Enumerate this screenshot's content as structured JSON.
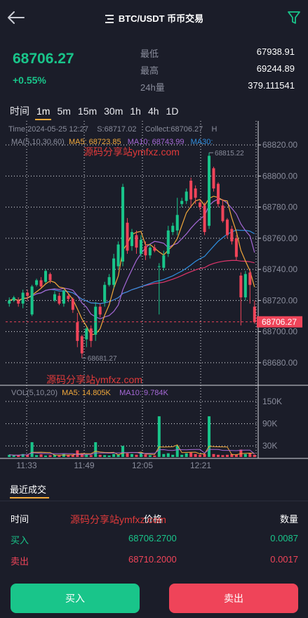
{
  "header": {
    "title": "BTC/USDT 币币交易",
    "back_icon": "arrow-left-icon",
    "filter_icon": "filter-icon",
    "menu_icon": "menu-icon"
  },
  "ticker": {
    "last_price": "68706.27",
    "change_pct": "+0.55%",
    "low_label": "最低",
    "low_value": "67938.91",
    "high_label": "最高",
    "high_value": "69244.89",
    "volume_label": "24h量",
    "volume_value": "379.111541"
  },
  "intervals": {
    "time_label": "时间",
    "items": [
      "1m",
      "5m",
      "15m",
      "30m",
      "1h",
      "4h",
      "1D"
    ],
    "active": "1m"
  },
  "chart_info": {
    "time": "Time:2024-05-25 12:27",
    "s": "S:68717.02",
    "collect": "Collect:68706.27",
    "h": "H"
  },
  "ma_info": {
    "label": "MA(5,10,30,60)",
    "ma5": "MA5: 68723.85",
    "ma10": "MA10: 68743.99",
    "ma30": "MA30:"
  },
  "vol_info": {
    "label": "VOL(5,10,20)",
    "ma5": "MA5: 14.805K",
    "ma10": "MA10: 9.784K"
  },
  "watermark": "源码分享站ymfxz.com",
  "chart_data": {
    "type": "candlestick",
    "price_axis": {
      "ylim": [
        68670,
        68830
      ],
      "ticks": [
        "68820.00",
        "68800.00",
        "68780.00",
        "68760.00",
        "68740.00",
        "68720.00",
        "68700.00",
        "68680.00"
      ]
    },
    "volume_axis": {
      "ylim": [
        0,
        190000
      ],
      "ticks": [
        "150K",
        "90K",
        "30K"
      ]
    },
    "time_ticks": [
      "11:33",
      "11:49",
      "12:05",
      "12:21"
    ],
    "current_price_label": "68706.27",
    "current_price": 68706.27,
    "high_marker": "68815.22",
    "low_marker": "68681.27",
    "colors": {
      "up": "#19c58a",
      "down": "#ef4459",
      "ma5": "#f2a93b",
      "ma10": "#a568d6",
      "ma30": "#2f8fe0",
      "ma60": "#e0356b"
    },
    "candles": [
      [
        68718,
        68720,
        68716,
        68722
      ],
      [
        68720,
        68722,
        68719,
        68723
      ],
      [
        68720,
        68718,
        68716,
        68722
      ],
      [
        68718,
        68725,
        68715,
        68727
      ],
      [
        68725,
        68723,
        68720,
        68727
      ],
      [
        68711,
        68729,
        68710,
        68730
      ],
      [
        68730,
        68733,
        68729,
        68734
      ],
      [
        68733,
        68729,
        68728,
        68735
      ],
      [
        68732,
        68739,
        68731,
        68740
      ],
      [
        68737,
        68733,
        68731,
        68738
      ],
      [
        68720,
        68724,
        68719,
        68726
      ],
      [
        68723,
        68718,
        68717,
        68725
      ],
      [
        68718,
        68726,
        68716,
        68727
      ],
      [
        68723,
        68721,
        68719,
        68724
      ],
      [
        68721,
        68714,
        68712,
        68722
      ],
      [
        68706,
        68694,
        68690,
        68712
      ],
      [
        68697,
        68686,
        68683,
        68698
      ],
      [
        68695,
        68702,
        68690,
        68703
      ],
      [
        68702,
        68694,
        68690,
        68704
      ],
      [
        68698,
        68716,
        68694,
        68719
      ],
      [
        68716,
        68711,
        68709,
        68718
      ],
      [
        68719,
        68730,
        68716,
        68732
      ],
      [
        68730,
        68735,
        68729,
        68737
      ],
      [
        68730,
        68747,
        68728,
        68750
      ],
      [
        68742,
        68756,
        68740,
        68758
      ],
      [
        68745,
        68793,
        68742,
        68795
      ],
      [
        68770,
        68752,
        68750,
        68773
      ],
      [
        68755,
        68764,
        68752,
        68766
      ],
      [
        68762,
        68754,
        68750,
        68765
      ],
      [
        68750,
        68759,
        68748,
        68762
      ],
      [
        68755,
        68749,
        68746,
        68758
      ],
      [
        68749,
        68754,
        68747,
        68756
      ],
      [
        68754,
        68752,
        68751,
        68756
      ],
      [
        68742,
        68742,
        68711,
        68744
      ],
      [
        68741,
        68749,
        68739,
        68752
      ],
      [
        68750,
        68765,
        68748,
        68768
      ],
      [
        68764,
        68768,
        68762,
        68770
      ],
      [
        68765,
        68775,
        68762,
        68786
      ],
      [
        68782,
        68784,
        68780,
        68786
      ],
      [
        68784,
        68790,
        68782,
        68792
      ],
      [
        68797,
        68785,
        68780,
        68799
      ],
      [
        68792,
        68786,
        68782,
        68794
      ],
      [
        68783,
        68780,
        68778,
        68785
      ],
      [
        68781,
        68764,
        68762,
        68783
      ],
      [
        68768,
        68813,
        68766,
        68815
      ],
      [
        68805,
        68792,
        68790,
        68806
      ],
      [
        68795,
        68782,
        68780,
        68796
      ],
      [
        68781,
        68771,
        68770,
        68785
      ],
      [
        68772,
        68762,
        68760,
        68773
      ],
      [
        68766,
        68758,
        68756,
        68768
      ],
      [
        68760,
        68748,
        68746,
        68762
      ],
      [
        68736,
        68722,
        68704,
        68738
      ],
      [
        68722,
        68737,
        68720,
        68739
      ],
      [
        68738,
        68730,
        68718,
        68740
      ],
      [
        68716,
        68706,
        68705,
        68720
      ]
    ],
    "volumes": [
      6,
      4,
      5,
      8,
      6,
      40,
      5,
      7,
      4,
      5,
      6,
      4,
      8,
      5,
      6,
      18,
      10,
      6,
      5,
      40,
      6,
      5,
      4,
      8,
      6,
      30,
      10,
      8,
      6,
      12,
      7,
      5,
      4,
      110,
      8,
      10,
      6,
      30,
      6,
      10,
      12,
      8,
      6,
      8,
      110,
      8,
      6,
      5,
      6,
      8,
      6,
      20,
      8,
      10,
      6
    ]
  },
  "trades": {
    "title": "最近成交",
    "headers": {
      "time": "时间",
      "price": "价格",
      "qty": "数量"
    },
    "rows": [
      {
        "side": "买入",
        "price": "68706.2700",
        "qty": "0.0087",
        "type": "buy"
      },
      {
        "side": "卖出",
        "price": "68710.2000",
        "qty": "0.0017",
        "type": "sell"
      }
    ]
  },
  "actions": {
    "buy": "买入",
    "sell": "卖出"
  }
}
